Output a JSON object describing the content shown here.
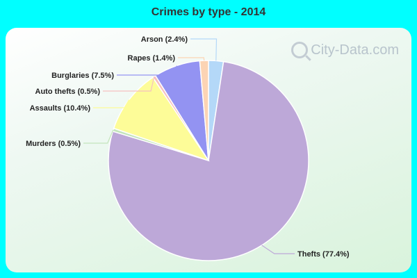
{
  "title": "Crimes by type - 2014",
  "watermark": "City-Data.com",
  "chart_data": {
    "type": "pie",
    "title": "Crimes by type - 2014",
    "slices": [
      {
        "label": "Arson (2.4%)",
        "name": "Arson",
        "value": 2.4,
        "color": "#b4d8f8"
      },
      {
        "label": "Thefts (77.4%)",
        "name": "Thefts",
        "value": 77.4,
        "color": "#bda8d8"
      },
      {
        "label": "Murders (0.5%)",
        "name": "Murders",
        "value": 0.5,
        "color": "#c4e4bc"
      },
      {
        "label": "Assaults (10.4%)",
        "name": "Assaults",
        "value": 10.4,
        "color": "#fdfc98"
      },
      {
        "label": "Auto thefts (0.5%)",
        "name": "Auto thefts",
        "value": 0.5,
        "color": "#f6c0c0"
      },
      {
        "label": "Burglaries (7.5%)",
        "name": "Burglaries",
        "value": 7.5,
        "color": "#9393f2"
      },
      {
        "label": "Rapes (1.4%)",
        "name": "Rapes",
        "value": 1.4,
        "color": "#fcd4b4"
      }
    ]
  }
}
